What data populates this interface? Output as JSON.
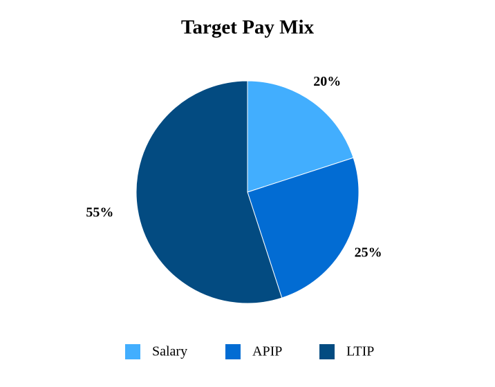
{
  "chart_data": {
    "type": "pie",
    "title": "Target Pay Mix",
    "categories": [
      "Salary",
      "APIP",
      "LTIP"
    ],
    "values": [
      20,
      25,
      55
    ],
    "value_labels": [
      "20%",
      "25%",
      "55%"
    ],
    "colors": [
      "#42aefe",
      "#026cd3",
      "#034b81"
    ],
    "legend": "bottom"
  }
}
